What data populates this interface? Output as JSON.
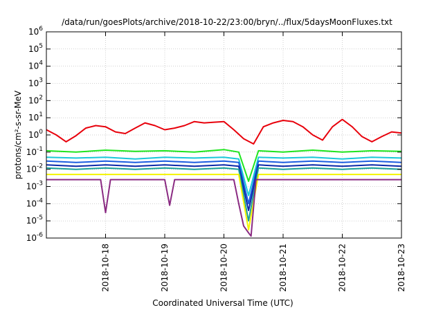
{
  "chart_data": {
    "type": "line",
    "title": "/data/run/goesPlots/archive/2018-10-22/23:00/bryn/../flux/5daysMoonFluxes.txt",
    "xlabel": "Coordinated Universal Time (UTC)",
    "ylabel": "protons/cm²-s-sr-MeV",
    "yscale": "log",
    "ylim": [
      1e-06,
      1000000.0
    ],
    "xlim": [
      "2018-10-17 00:00",
      "2018-10-23 00:00"
    ],
    "x_ticks": [
      "2018-10-18",
      "2018-10-19",
      "2018-10-20",
      "2018-10-21",
      "2018-10-22",
      "2018-10-23"
    ],
    "y_ticks": [
      {
        "base": "10",
        "exp": "-6"
      },
      {
        "base": "10",
        "exp": "-5"
      },
      {
        "base": "10",
        "exp": "-4"
      },
      {
        "base": "10",
        "exp": "-3"
      },
      {
        "base": "10",
        "exp": "-2"
      },
      {
        "base": "10",
        "exp": "-1"
      },
      {
        "base": "10",
        "exp": "0"
      },
      {
        "base": "10",
        "exp": "1"
      },
      {
        "base": "10",
        "exp": "2"
      },
      {
        "base": "10",
        "exp": "3"
      },
      {
        "base": "10",
        "exp": "4"
      },
      {
        "base": "10",
        "exp": "5"
      },
      {
        "base": "10",
        "exp": "6"
      }
    ],
    "grid": true,
    "colors": {
      "axis": "#000000",
      "grid": "#a0a0a0",
      "red": "#e8000b",
      "green": "#1ee51e",
      "cyan": "#18c8d8",
      "blue1": "#1a5ce0",
      "blue2": "#0a28a8",
      "teal": "#1aa09a",
      "yellow": "#f4f400",
      "purple": "#8a2a82"
    },
    "series": [
      {
        "color": "red",
        "x": [
          "2018-10-17 00:00",
          "2018-10-17 04:00",
          "2018-10-17 08:00",
          "2018-10-17 12:00",
          "2018-10-17 16:00",
          "2018-10-17 20:00",
          "2018-10-18 00:00",
          "2018-10-18 04:00",
          "2018-10-18 08:00",
          "2018-10-18 12:00",
          "2018-10-18 16:00",
          "2018-10-18 20:00",
          "2018-10-19 00:00",
          "2018-10-19 04:00",
          "2018-10-19 08:00",
          "2018-10-19 12:00",
          "2018-10-19 16:00",
          "2018-10-19 20:00",
          "2018-10-20 00:00",
          "2018-10-20 04:00",
          "2018-10-20 08:00",
          "2018-10-20 12:00",
          "2018-10-20 16:00",
          "2018-10-20 20:00",
          "2018-10-21 00:00",
          "2018-10-21 04:00",
          "2018-10-21 08:00",
          "2018-10-21 12:00",
          "2018-10-21 16:00",
          "2018-10-21 20:00",
          "2018-10-22 00:00",
          "2018-10-22 04:00",
          "2018-10-22 08:00",
          "2018-10-22 12:00",
          "2018-10-22 16:00",
          "2018-10-22 20:00",
          "2018-10-23 00:00"
        ],
        "y": [
          2.0,
          1.0,
          0.4,
          0.9,
          2.5,
          3.5,
          3.0,
          1.5,
          1.2,
          2.5,
          5.0,
          3.5,
          2.0,
          2.5,
          3.5,
          6.0,
          5.0,
          5.5,
          6.0,
          2.0,
          0.6,
          0.3,
          3.0,
          5.0,
          7.0,
          6.0,
          3.0,
          1.0,
          0.5,
          3.0,
          8.0,
          3.0,
          0.8,
          0.4,
          0.8,
          1.5,
          1.3
        ]
      },
      {
        "color": "green",
        "x": [
          "2018-10-17 00:00",
          "2018-10-17 12:00",
          "2018-10-18 00:00",
          "2018-10-18 12:00",
          "2018-10-19 00:00",
          "2018-10-19 12:00",
          "2018-10-20 00:00",
          "2018-10-20 06:00",
          "2018-10-20 10:00",
          "2018-10-20 14:00",
          "2018-10-21 00:00",
          "2018-10-21 12:00",
          "2018-10-22 00:00",
          "2018-10-22 12:00",
          "2018-10-23 00:00"
        ],
        "y": [
          0.12,
          0.1,
          0.13,
          0.11,
          0.12,
          0.1,
          0.14,
          0.1,
          0.002,
          0.12,
          0.1,
          0.13,
          0.1,
          0.12,
          0.11
        ]
      },
      {
        "color": "cyan",
        "x": [
          "2018-10-17 00:00",
          "2018-10-17 12:00",
          "2018-10-18 00:00",
          "2018-10-18 12:00",
          "2018-10-19 00:00",
          "2018-10-19 12:00",
          "2018-10-20 00:00",
          "2018-10-20 06:00",
          "2018-10-20 10:00",
          "2018-10-20 14:00",
          "2018-10-21 00:00",
          "2018-10-21 12:00",
          "2018-10-22 00:00",
          "2018-10-22 12:00",
          "2018-10-23 00:00"
        ],
        "y": [
          0.05,
          0.045,
          0.05,
          0.04,
          0.05,
          0.045,
          0.05,
          0.04,
          0.0003,
          0.05,
          0.045,
          0.05,
          0.04,
          0.05,
          0.045
        ]
      },
      {
        "color": "blue1",
        "x": [
          "2018-10-17 00:00",
          "2018-10-17 12:00",
          "2018-10-18 00:00",
          "2018-10-18 12:00",
          "2018-10-19 00:00",
          "2018-10-19 12:00",
          "2018-10-20 00:00",
          "2018-10-20 06:00",
          "2018-10-20 10:00",
          "2018-10-20 14:00",
          "2018-10-21 00:00",
          "2018-10-21 12:00",
          "2018-10-22 00:00",
          "2018-10-22 12:00",
          "2018-10-23 00:00"
        ],
        "y": [
          0.03,
          0.025,
          0.03,
          0.025,
          0.03,
          0.025,
          0.03,
          0.025,
          0.0001,
          0.03,
          0.025,
          0.03,
          0.025,
          0.03,
          0.025
        ]
      },
      {
        "color": "blue2",
        "x": [
          "2018-10-17 00:00",
          "2018-10-17 12:00",
          "2018-10-18 00:00",
          "2018-10-18 12:00",
          "2018-10-19 00:00",
          "2018-10-19 12:00",
          "2018-10-20 00:00",
          "2018-10-20 06:00",
          "2018-10-20 10:00",
          "2018-10-20 14:00",
          "2018-10-21 00:00",
          "2018-10-21 12:00",
          "2018-10-22 00:00",
          "2018-10-22 12:00",
          "2018-10-23 00:00"
        ],
        "y": [
          0.018,
          0.015,
          0.018,
          0.015,
          0.018,
          0.015,
          0.018,
          0.015,
          4e-05,
          0.018,
          0.015,
          0.018,
          0.015,
          0.018,
          0.015
        ]
      },
      {
        "color": "teal",
        "x": [
          "2018-10-17 00:00",
          "2018-10-17 12:00",
          "2018-10-18 00:00",
          "2018-10-18 12:00",
          "2018-10-19 00:00",
          "2018-10-19 12:00",
          "2018-10-20 00:00",
          "2018-10-20 06:00",
          "2018-10-20 10:00",
          "2018-10-20 14:00",
          "2018-10-21 00:00",
          "2018-10-21 12:00",
          "2018-10-22 00:00",
          "2018-10-22 12:00",
          "2018-10-23 00:00"
        ],
        "y": [
          0.012,
          0.01,
          0.012,
          0.01,
          0.012,
          0.01,
          0.012,
          0.01,
          1e-05,
          0.012,
          0.01,
          0.012,
          0.01,
          0.012,
          0.01
        ]
      },
      {
        "color": "yellow",
        "x": [
          "2018-10-17 00:00",
          "2018-10-17 12:00",
          "2018-10-18 00:00",
          "2018-10-18 12:00",
          "2018-10-19 00:00",
          "2018-10-19 12:00",
          "2018-10-20 00:00",
          "2018-10-20 06:00",
          "2018-10-20 10:00",
          "2018-10-20 14:00",
          "2018-10-21 00:00",
          "2018-10-21 12:00",
          "2018-10-22 00:00",
          "2018-10-22 12:00",
          "2018-10-23 00:00"
        ],
        "y": [
          0.005,
          0.005,
          0.005,
          0.005,
          0.005,
          0.005,
          0.005,
          0.005,
          3e-06,
          0.005,
          0.005,
          0.005,
          0.005,
          0.005,
          0.005
        ]
      },
      {
        "color": "purple",
        "x": [
          "2018-10-17 00:00",
          "2018-10-17 12:00",
          "2018-10-17 22:00",
          "2018-10-18 00:00",
          "2018-10-18 02:00",
          "2018-10-18 12:00",
          "2018-10-19 00:00",
          "2018-10-19 02:00",
          "2018-10-19 04:00",
          "2018-10-19 12:00",
          "2018-10-20 00:00",
          "2018-10-20 04:00",
          "2018-10-20 06:00",
          "2018-10-20 08:00",
          "2018-10-20 10:00",
          "2018-10-20 11:00",
          "2018-10-20 13:00",
          "2018-10-21 00:00",
          "2018-10-21 12:00",
          "2018-10-22 00:00",
          "2018-10-22 12:00",
          "2018-10-23 00:00"
        ],
        "y": [
          0.0025,
          0.0025,
          0.0025,
          3e-05,
          0.0025,
          0.0025,
          0.0025,
          8e-05,
          0.0025,
          0.0025,
          0.0025,
          0.0025,
          0.0001,
          5e-06,
          2e-06,
          1.3e-06,
          0.0025,
          0.0025,
          0.0025,
          0.0025,
          0.0025,
          0.0025
        ]
      }
    ]
  }
}
